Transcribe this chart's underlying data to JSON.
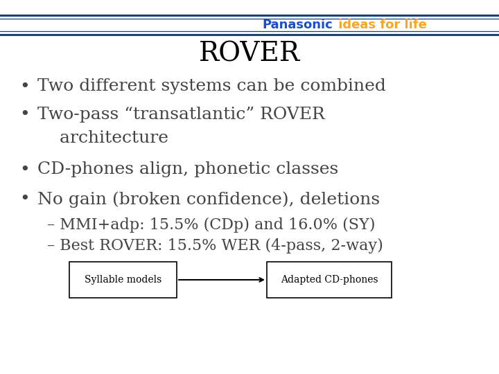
{
  "title": "ROVER",
  "bg_color": "#ffffff",
  "header_line_color": "#1a3f7a",
  "panasonic_text": "Panasonic",
  "panasonic_color": "#1a4fcc",
  "ideas_text": " ideas for life",
  "ideas_color": "#f5a623",
  "sub_bullets": [
    "– MMI+adp: 15.5% (CDp) and 16.0% (SY)",
    "– Best ROVER: 15.5% WER (4-pass, 2-way)"
  ],
  "box1_label": "Syllable models",
  "box2_label": "Adapted CD-phones",
  "text_color": "#444444",
  "title_color": "#000000"
}
